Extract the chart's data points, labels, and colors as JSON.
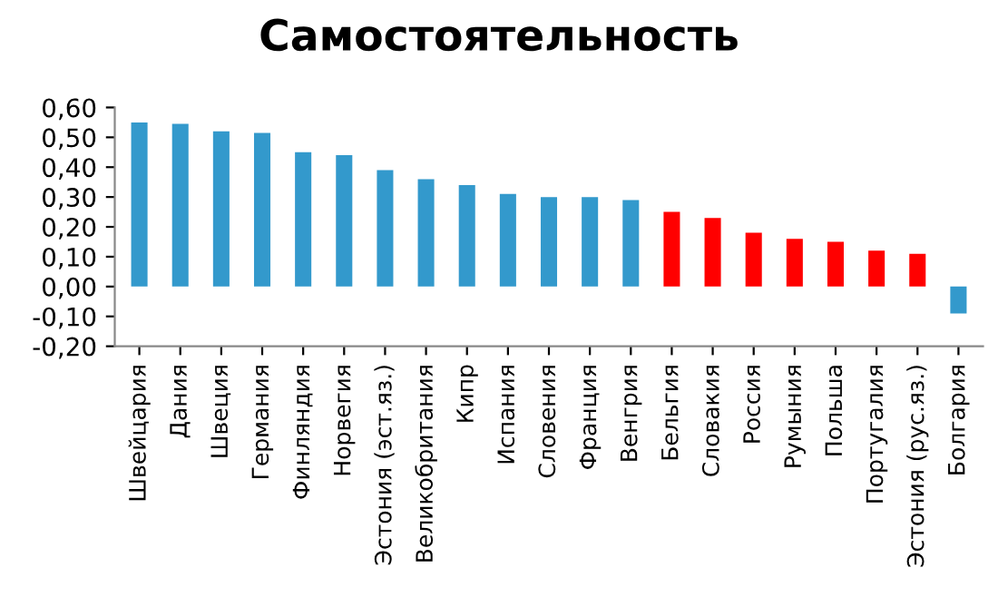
{
  "chart_data": {
    "type": "bar",
    "title": "Самостоятельность",
    "categories": [
      "Швейцария",
      "Дания",
      "Швеция",
      "Германия",
      "Финляндия",
      "Норвегия",
      "Эстония (эст.яз.)",
      "Великобритания",
      "Кипр",
      "Испания",
      "Словения",
      "Франция",
      "Венгрия",
      "Бельгия",
      "Словакия",
      "Россия",
      "Румыния",
      "Польша",
      "Португалия",
      "Эстония (рус.яз.)",
      "Болгария"
    ],
    "values": [
      0.55,
      0.545,
      0.52,
      0.515,
      0.45,
      0.44,
      0.39,
      0.36,
      0.34,
      0.31,
      0.3,
      0.3,
      0.29,
      0.25,
      0.23,
      0.18,
      0.16,
      0.15,
      0.12,
      0.11,
      -0.09
    ],
    "colors": [
      "#3399cc",
      "#3399cc",
      "#3399cc",
      "#3399cc",
      "#3399cc",
      "#3399cc",
      "#3399cc",
      "#3399cc",
      "#3399cc",
      "#3399cc",
      "#3399cc",
      "#3399cc",
      "#3399cc",
      "#ff0000",
      "#ff0000",
      "#ff0000",
      "#ff0000",
      "#ff0000",
      "#ff0000",
      "#ff0000",
      "#3399cc"
    ],
    "ylim": [
      -0.2,
      0.6
    ],
    "yticks": [
      {
        "value": -0.2,
        "label": "-0,20"
      },
      {
        "value": -0.1,
        "label": "-0,10"
      },
      {
        "value": 0,
        "label": "0,00"
      },
      {
        "value": 0.1,
        "label": "0,10"
      },
      {
        "value": 0.2,
        "label": "0,20"
      },
      {
        "value": 0.3,
        "label": "0,30"
      },
      {
        "value": 0.4,
        "label": "0,40"
      },
      {
        "value": 0.5,
        "label": "0,50"
      },
      {
        "value": 0.6,
        "label": "0,60"
      }
    ],
    "grid": false
  }
}
